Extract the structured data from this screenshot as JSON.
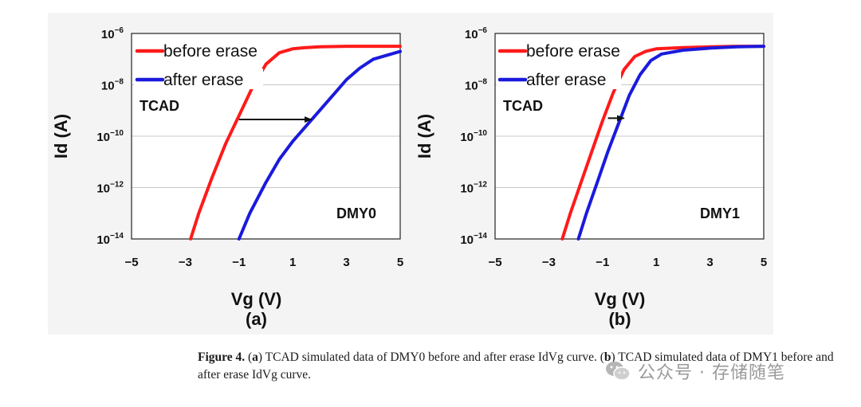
{
  "chart_data": [
    {
      "type": "line",
      "panel_label": "(a)",
      "device": "DMY0",
      "annotation": "TCAD",
      "xlabel": "Vg (V)",
      "ylabel": "Id (A)",
      "xlim": [
        -5,
        5
      ],
      "ylim_log10": [
        -14,
        -6
      ],
      "x_ticks": [
        "−5",
        "−3",
        "−1",
        "1",
        "3",
        "5"
      ],
      "y_ticks": [
        {
          "base": "10",
          "exp": "−6",
          "value": -6
        },
        {
          "base": "10",
          "exp": "−8",
          "value": -8
        },
        {
          "base": "10",
          "exp": "−10",
          "value": -10
        },
        {
          "base": "10",
          "exp": "−12",
          "value": -12
        },
        {
          "base": "10",
          "exp": "−14",
          "value": -14
        }
      ],
      "legend_position": "top-left",
      "arrow": {
        "from": [
          -1,
          -9.35
        ],
        "to": [
          1.7,
          -9.35
        ]
      },
      "series": [
        {
          "name": "before erase",
          "color": "#ff1a1a",
          "x": [
            -2.8,
            -2.5,
            -2.0,
            -1.5,
            -1.0,
            -0.5,
            0.0,
            0.5,
            1.0,
            1.5,
            2.0,
            3.0,
            4.0,
            5.0
          ],
          "log_id": [
            -14.0,
            -13.0,
            -11.6,
            -10.3,
            -9.2,
            -8.1,
            -7.2,
            -6.75,
            -6.6,
            -6.55,
            -6.52,
            -6.5,
            -6.5,
            -6.5
          ]
        },
        {
          "name": "after erase",
          "color": "#1a1add",
          "x": [
            -1.0,
            -0.6,
            0.0,
            0.5,
            1.0,
            1.5,
            2.0,
            2.5,
            3.0,
            3.5,
            4.0,
            4.5,
            5.0
          ],
          "log_id": [
            -14.0,
            -13.0,
            -11.8,
            -10.9,
            -10.2,
            -9.6,
            -9.0,
            -8.4,
            -7.8,
            -7.35,
            -7.0,
            -6.85,
            -6.7
          ]
        }
      ]
    },
    {
      "type": "line",
      "panel_label": "(b)",
      "device": "DMY1",
      "annotation": "TCAD",
      "xlabel": "Vg (V)",
      "ylabel": "Id (A)",
      "xlim": [
        -5,
        5
      ],
      "ylim_log10": [
        -14,
        -6
      ],
      "x_ticks": [
        "−5",
        "−3",
        "−1",
        "1",
        "3",
        "5"
      ],
      "y_ticks": [
        {
          "base": "10",
          "exp": "−6",
          "value": -6
        },
        {
          "base": "10",
          "exp": "−8",
          "value": -8
        },
        {
          "base": "10",
          "exp": "−10",
          "value": -10
        },
        {
          "base": "10",
          "exp": "−12",
          "value": -12
        },
        {
          "base": "10",
          "exp": "−14",
          "value": -14
        }
      ],
      "legend_position": "top-left",
      "arrow": {
        "from": [
          -0.8,
          -9.3
        ],
        "to": [
          -0.2,
          -9.3
        ]
      },
      "series": [
        {
          "name": "before erase",
          "color": "#ff1a1a",
          "x": [
            -2.5,
            -2.2,
            -1.8,
            -1.4,
            -1.0,
            -0.6,
            -0.2,
            0.2,
            0.6,
            1.0,
            2.0,
            3.0,
            4.0,
            5.0
          ],
          "log_id": [
            -14.0,
            -13.0,
            -11.8,
            -10.6,
            -9.4,
            -8.3,
            -7.4,
            -6.9,
            -6.7,
            -6.6,
            -6.55,
            -6.52,
            -6.5,
            -6.5
          ]
        },
        {
          "name": "after erase",
          "color": "#1a1add",
          "x": [
            -1.9,
            -1.6,
            -1.2,
            -0.8,
            -0.4,
            0.0,
            0.4,
            0.8,
            1.2,
            2.0,
            3.0,
            4.0,
            5.0
          ],
          "log_id": [
            -14.0,
            -13.0,
            -11.8,
            -10.6,
            -9.5,
            -8.4,
            -7.6,
            -7.05,
            -6.8,
            -6.65,
            -6.57,
            -6.52,
            -6.5
          ]
        }
      ]
    }
  ],
  "caption": {
    "label": "Figure 4.",
    "text_parts": [
      "(",
      "a",
      ") TCAD simulated data of DMY0 before and after erase IdVg curve. (",
      "b",
      ") TCAD simulated data of DMY1 before and after erase IdVg curve."
    ]
  },
  "watermark": {
    "text": "公众号 · 存储随笔",
    "icon": "wechat-icon"
  }
}
